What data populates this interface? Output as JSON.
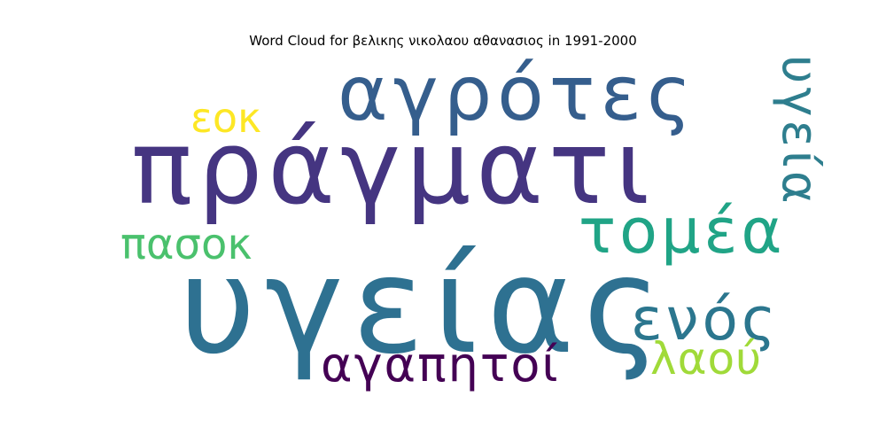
{
  "chart_data": {
    "type": "wordcloud",
    "title": "Word Cloud for βελικης νικολαου αθανασιος in 1991-2000",
    "words": [
      {
        "text": "υγείας",
        "weight": 1.0,
        "color": "#2e7191",
        "orientation": "horizontal"
      },
      {
        "text": "πράγματι",
        "weight": 0.92,
        "color": "#453581",
        "orientation": "horizontal"
      },
      {
        "text": "αγρότες",
        "weight": 0.68,
        "color": "#355e8d",
        "orientation": "horizontal"
      },
      {
        "text": "τομέα",
        "weight": 0.55,
        "color": "#20a486",
        "orientation": "horizontal"
      },
      {
        "text": "ενός",
        "weight": 0.5,
        "color": "#2b768e",
        "orientation": "horizontal"
      },
      {
        "text": "υγεία",
        "weight": 0.45,
        "color": "#2e7e8e",
        "orientation": "vertical"
      },
      {
        "text": "αγαπητοί",
        "weight": 0.42,
        "color": "#440154",
        "orientation": "horizontal"
      },
      {
        "text": "πασοκ",
        "weight": 0.4,
        "color": "#4ac16d",
        "orientation": "horizontal"
      },
      {
        "text": "λαού",
        "weight": 0.4,
        "color": "#a0da39",
        "orientation": "horizontal"
      },
      {
        "text": "εοκ",
        "weight": 0.37,
        "color": "#fde725",
        "orientation": "horizontal"
      }
    ]
  }
}
